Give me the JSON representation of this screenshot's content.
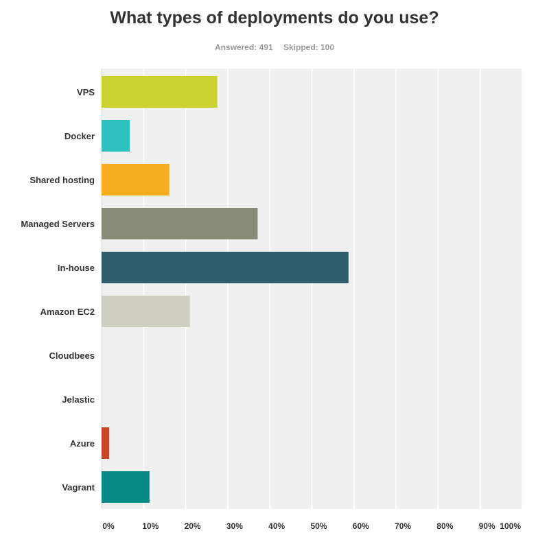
{
  "chart_data": {
    "type": "bar",
    "orientation": "horizontal",
    "title": "What types of deployments do you use?",
    "answered_label": "Answered: 491",
    "skipped_label": "Skipped: 100",
    "categories": [
      "VPS",
      "Docker",
      "Shared hosting",
      "Managed Servers",
      "In-house",
      "Amazon EC2",
      "Cloudbees",
      "Jelastic",
      "Azure",
      "Vagrant"
    ],
    "values": [
      27.5,
      6.7,
      16.1,
      37.1,
      58.7,
      21.0,
      0,
      0,
      1.8,
      11.4
    ],
    "colors": [
      "#c9d22e",
      "#2fbfbf",
      "#f6ac1f",
      "#878b78",
      "#2d5e6b",
      "#cfcfc0",
      "#999999",
      "#999999",
      "#c94523",
      "#0a8a87"
    ],
    "xlim": [
      0,
      100
    ],
    "xticks": [
      "0%",
      "10%",
      "20%",
      "30%",
      "40%",
      "50%",
      "60%",
      "70%",
      "80%",
      "90%",
      "100%"
    ],
    "grid": true,
    "background": "#f0f0f0"
  }
}
